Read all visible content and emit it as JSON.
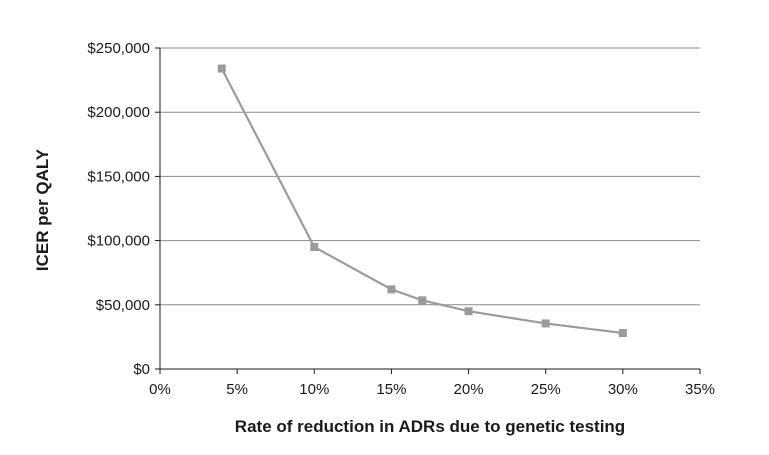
{
  "chart_data": {
    "type": "line",
    "xlabel": "Rate of reduction in ADRs due to genetic testing",
    "ylabel": "ICER per QALY",
    "x_ticks": [
      "0%",
      "5%",
      "10%",
      "15%",
      "20%",
      "25%",
      "30%",
      "35%"
    ],
    "y_ticks": [
      "$0",
      "$50,000",
      "$100,000",
      "$150,000",
      "$200,000",
      "$250,000"
    ],
    "xlim": [
      0,
      35
    ],
    "ylim": [
      0,
      250000
    ],
    "grid": "horizontal",
    "legend": "none",
    "series": [
      {
        "x": [
          4,
          10,
          15,
          17,
          20,
          25,
          30
        ],
        "y": [
          234000,
          95000,
          62000,
          53500,
          45000,
          35500,
          28000
        ]
      }
    ],
    "colors": {
      "series": "#9b9b9b",
      "grid": "#8a8a8a",
      "axis": "#1a1a1a"
    }
  }
}
